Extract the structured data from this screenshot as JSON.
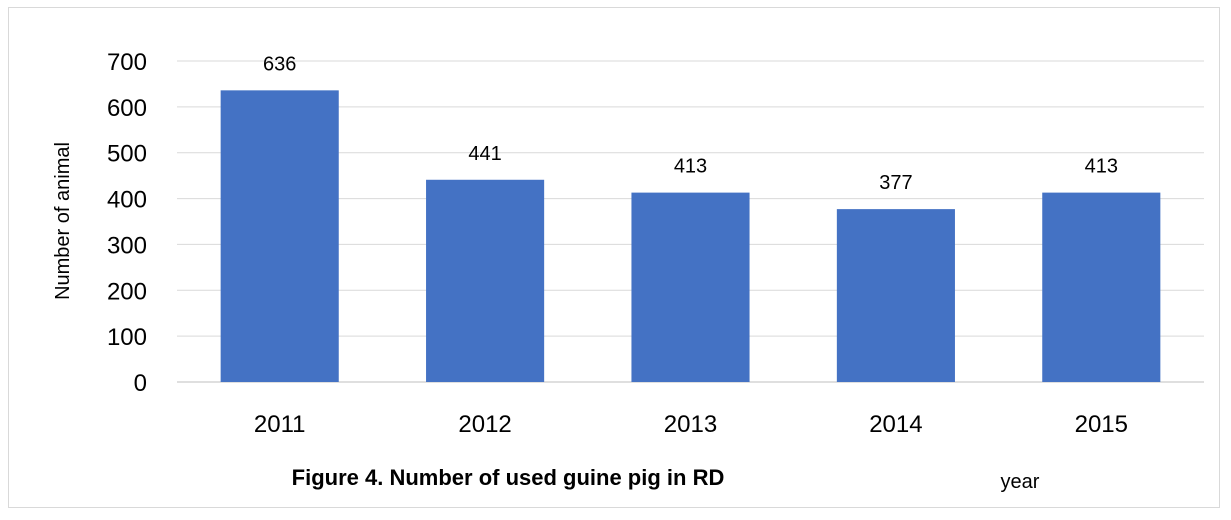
{
  "chart_data": {
    "type": "bar",
    "title": "Figure 4. Number of used guine pig in RD",
    "xlabel": "year",
    "ylabel": "Number of animal",
    "categories": [
      "2011",
      "2012",
      "2013",
      "2014",
      "2015"
    ],
    "values": [
      636,
      441,
      413,
      377,
      413
    ],
    "data_labels": [
      "636",
      "441",
      "413",
      "377",
      "413"
    ],
    "ylim": [
      0,
      700
    ],
    "yticks": [
      0,
      100,
      200,
      300,
      400,
      500,
      600,
      700
    ],
    "ytick_labels": [
      "0",
      "100",
      "200",
      "300",
      "400",
      "500",
      "600",
      "700"
    ],
    "grid": true,
    "bar_color": "#4472c4"
  }
}
